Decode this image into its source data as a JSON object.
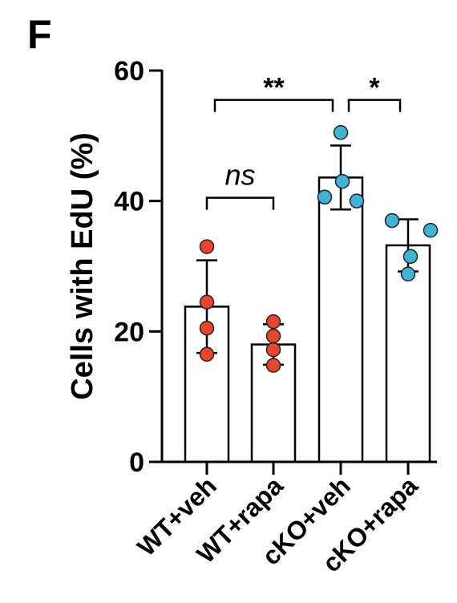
{
  "panel_label": "F",
  "chart_data": {
    "type": "bar",
    "ylabel": "Cells with EdU (%)",
    "ylim": [
      0,
      60
    ],
    "yticks": [
      0,
      20,
      40,
      60
    ],
    "grid": false,
    "categories": [
      "WT+veh",
      "WT+rapa",
      "cKO+veh",
      "cKO+rapa"
    ],
    "means": [
      23.8,
      18.0,
      43.6,
      33.2
    ],
    "errors": [
      7.1,
      3.1,
      4.9,
      4.0
    ],
    "points": [
      [
        33.0,
        24.5,
        20.5,
        16.5
      ],
      [
        21.5,
        19.3,
        17.2,
        14.8
      ],
      [
        50.5,
        43.0,
        40.6,
        40.0
      ],
      [
        37.0,
        35.5,
        31.5,
        28.8
      ]
    ],
    "point_colors": [
      "#e8452c",
      "#e8452c",
      "#3fb4d6",
      "#3fb4d6"
    ],
    "annotations": [
      {
        "from": 0,
        "to": 1,
        "label": "ns",
        "level": 40.5
      },
      {
        "from": 0,
        "to": 2,
        "label": "**",
        "level": 55.5
      },
      {
        "from": 2,
        "to": 3,
        "label": "*",
        "level": 55.5
      }
    ]
  }
}
